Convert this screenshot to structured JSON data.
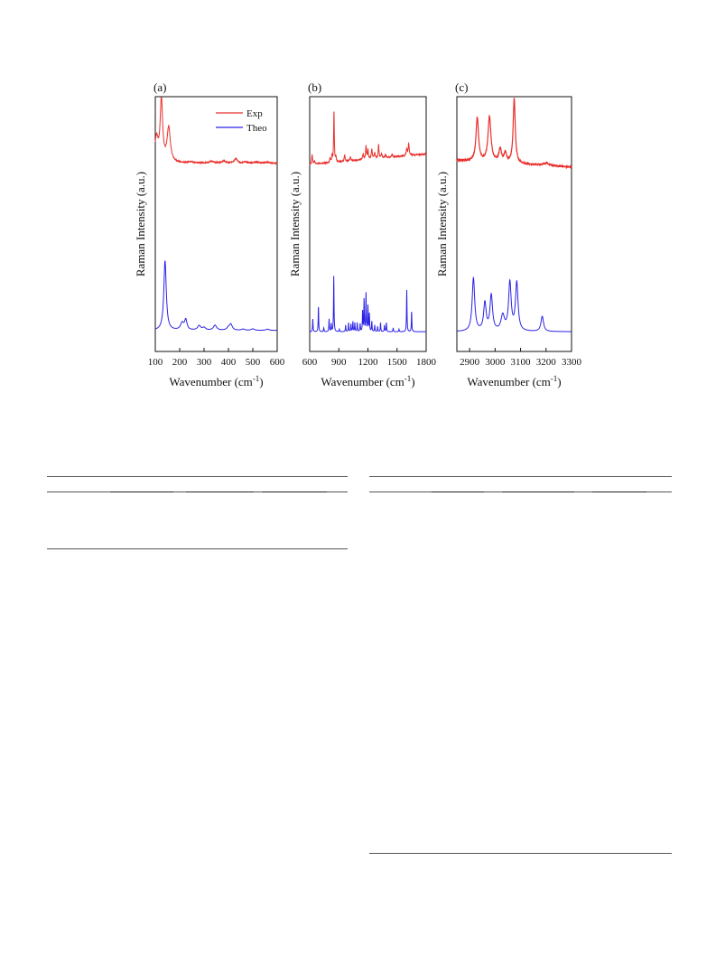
{
  "figure": {
    "colors": {
      "exp": "#e8302c",
      "theo": "#2a22e6",
      "axis": "#111111"
    },
    "legend": {
      "exp": "Exp",
      "theo": "Theo"
    }
  },
  "chart_data": [
    {
      "type": "line",
      "panel_label": "(a)",
      "xlabel": "Wavenumber (cm-1)",
      "ylabel": "Raman Intensity (a.u.)",
      "xlim": [
        100,
        600
      ],
      "xticks": [
        100,
        200,
        300,
        400,
        500,
        600
      ],
      "ylim": [
        0,
        1
      ],
      "legend_position": "top-right",
      "series": [
        {
          "name": "Exp",
          "baseline": 0.53,
          "noise": 0.003,
          "peaks": [
            [
              105,
              0.18,
              8
            ],
            [
              125,
              0.47,
              6
            ],
            [
              155,
              0.26,
              8
            ],
            [
              245,
              0.01,
              10
            ],
            [
              330,
              0.014,
              10
            ],
            [
              380,
              0.016,
              10
            ],
            [
              430,
              0.035,
              7
            ],
            [
              470,
              0.008,
              10
            ],
            [
              515,
              0.01,
              10
            ],
            [
              560,
              0.007,
              10
            ]
          ]
        },
        {
          "name": "Theo",
          "baseline": 0.03,
          "noise": 0.0,
          "peaks": [
            [
              140,
              0.55,
              6
            ],
            [
              210,
              0.055,
              8
            ],
            [
              225,
              0.08,
              6
            ],
            [
              280,
              0.035,
              8
            ],
            [
              300,
              0.02,
              8
            ],
            [
              345,
              0.04,
              8
            ],
            [
              400,
              0.02,
              8
            ],
            [
              410,
              0.045,
              7
            ],
            [
              460,
              0.01,
              8
            ],
            [
              500,
              0.012,
              8
            ],
            [
              560,
              0.01,
              8
            ]
          ]
        }
      ]
    },
    {
      "type": "line",
      "panel_label": "(b)",
      "xlabel": "Wavenumber (cm-1)",
      "ylabel": "Raman Intensity (a.u.)",
      "xlim": [
        600,
        1800
      ],
      "xticks": [
        600,
        900,
        1200,
        1500,
        1800
      ],
      "ylim": [
        0,
        1
      ],
      "series": [
        {
          "name": "Exp",
          "baseline": 0.52,
          "baseline_slope": 0.08,
          "noise": 0.004,
          "peaks": [
            [
              625,
              0.07,
              5
            ],
            [
              650,
              0.02,
              6
            ],
            [
              810,
              0.03,
              6
            ],
            [
              830,
              0.05,
              4
            ],
            [
              850,
              0.39,
              4
            ],
            [
              870,
              0.04,
              4
            ],
            [
              960,
              0.05,
              5
            ],
            [
              1020,
              0.03,
              5
            ],
            [
              1150,
              0.04,
              6
            ],
            [
              1180,
              0.1,
              5
            ],
            [
              1200,
              0.07,
              5
            ],
            [
              1240,
              0.07,
              6
            ],
            [
              1270,
              0.04,
              6
            ],
            [
              1310,
              0.1,
              5
            ],
            [
              1340,
              0.03,
              6
            ],
            [
              1380,
              0.02,
              6
            ],
            [
              1450,
              0.02,
              6
            ],
            [
              1600,
              0.05,
              6
            ],
            [
              1620,
              0.09,
              6
            ]
          ]
        },
        {
          "name": "Theo",
          "baseline": 0.02,
          "noise": 0.0,
          "peaks": [
            [
              632,
              0.1,
              3
            ],
            [
              690,
              0.2,
              3
            ],
            [
              745,
              0.03,
              3
            ],
            [
              800,
              0.1,
              3
            ],
            [
              822,
              0.06,
              3
            ],
            [
              848,
              0.44,
              3
            ],
            [
              905,
              0.02,
              3
            ],
            [
              970,
              0.05,
              3
            ],
            [
              1000,
              0.07,
              3
            ],
            [
              1025,
              0.06,
              3
            ],
            [
              1045,
              0.08,
              3
            ],
            [
              1065,
              0.07,
              3
            ],
            [
              1090,
              0.07,
              3
            ],
            [
              1120,
              0.06,
              3
            ],
            [
              1145,
              0.16,
              3
            ],
            [
              1160,
              0.25,
              3
            ],
            [
              1180,
              0.3,
              3
            ],
            [
              1200,
              0.2,
              3
            ],
            [
              1215,
              0.14,
              3
            ],
            [
              1240,
              0.08,
              3
            ],
            [
              1270,
              0.05,
              3
            ],
            [
              1300,
              0.04,
              3
            ],
            [
              1330,
              0.07,
              3
            ],
            [
              1370,
              0.05,
              3
            ],
            [
              1390,
              0.07,
              3
            ],
            [
              1460,
              0.03,
              3
            ],
            [
              1520,
              0.02,
              3
            ],
            [
              1600,
              0.33,
              3
            ],
            [
              1650,
              0.16,
              3
            ]
          ]
        }
      ]
    },
    {
      "type": "line",
      "panel_label": "(c)",
      "xlabel": "Wavenumber (cm-1)",
      "ylabel": "Raman Intensity (a.u.)",
      "xlim": [
        2850,
        3300
      ],
      "xticks": [
        2900,
        3000,
        3100,
        3200,
        3300
      ],
      "ylim": [
        0,
        1
      ],
      "series": [
        {
          "name": "Exp",
          "baseline": 0.55,
          "baseline_slope": -0.05,
          "noise": 0.006,
          "peaks": [
            [
              2930,
              0.33,
              6
            ],
            [
              2978,
              0.34,
              7
            ],
            [
              3020,
              0.1,
              6
            ],
            [
              3040,
              0.07,
              6
            ],
            [
              3075,
              0.49,
              5
            ],
            [
              3200,
              0.02,
              12
            ]
          ]
        },
        {
          "name": "Theo",
          "baseline": 0.02,
          "noise": 0.0,
          "peaks": [
            [
              2915,
              0.42,
              6
            ],
            [
              2960,
              0.22,
              6
            ],
            [
              2985,
              0.28,
              6
            ],
            [
              3030,
              0.12,
              8
            ],
            [
              3058,
              0.38,
              6
            ],
            [
              3085,
              0.38,
              6
            ],
            [
              3185,
              0.12,
              6
            ]
          ]
        }
      ]
    }
  ]
}
